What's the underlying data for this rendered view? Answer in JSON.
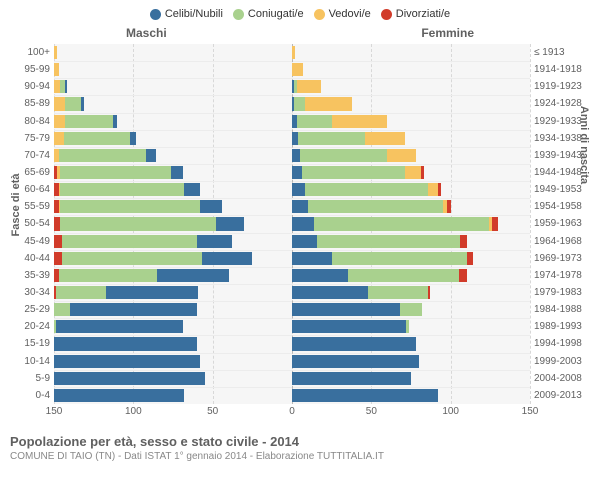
{
  "legend": [
    {
      "label": "Celibi/Nubili",
      "color": "#396f9e"
    },
    {
      "label": "Coniugati/e",
      "color": "#a9d18e"
    },
    {
      "label": "Vedovi/e",
      "color": "#f7c360"
    },
    {
      "label": "Divorziati/e",
      "color": "#d13b2a"
    }
  ],
  "half_labels": {
    "male": "Maschi",
    "female": "Femmine"
  },
  "y_left_title": "Fasce di età",
  "y_right_title": "Anni di nascita",
  "x_ticks": [
    150,
    100,
    50,
    0,
    50,
    100,
    150
  ],
  "x_max": 150,
  "footer_title": "Popolazione per età, sesso e stato civile - 2014",
  "footer_sub": "COMUNE DI TAIO (TN) - Dati ISTAT 1° gennaio 2014 - Elaborazione TUTTITALIA.IT",
  "style": {
    "plot_bg": "#f6f6f6",
    "grid_color": "#d8d8d8",
    "hline_color": "#ececec",
    "centerline_color": "#b8b8b8",
    "label_color": "#606060",
    "sub_color": "#888888",
    "label_fontsize": 10,
    "title_fontsize": 13
  },
  "rows": [
    {
      "age": "100+",
      "birth": "≤ 1913",
      "m": [
        0,
        0,
        2,
        0
      ],
      "f": [
        0,
        0,
        2,
        0
      ]
    },
    {
      "age": "95-99",
      "birth": "1914-1918",
      "m": [
        0,
        0,
        3,
        0
      ],
      "f": [
        0,
        0,
        7,
        0
      ]
    },
    {
      "age": "90-94",
      "birth": "1919-1923",
      "m": [
        1,
        3,
        4,
        0
      ],
      "f": [
        1,
        2,
        15,
        0
      ]
    },
    {
      "age": "85-89",
      "birth": "1924-1928",
      "m": [
        2,
        10,
        7,
        0
      ],
      "f": [
        1,
        7,
        30,
        0
      ]
    },
    {
      "age": "80-84",
      "birth": "1929-1933",
      "m": [
        3,
        30,
        7,
        0
      ],
      "f": [
        3,
        22,
        35,
        0
      ]
    },
    {
      "age": "75-79",
      "birth": "1934-1938",
      "m": [
        4,
        42,
        6,
        0
      ],
      "f": [
        4,
        42,
        25,
        0
      ]
    },
    {
      "age": "70-74",
      "birth": "1939-1943",
      "m": [
        6,
        55,
        3,
        0
      ],
      "f": [
        5,
        55,
        18,
        0
      ]
    },
    {
      "age": "65-69",
      "birth": "1944-1948",
      "m": [
        7,
        70,
        2,
        2
      ],
      "f": [
        6,
        65,
        10,
        2
      ]
    },
    {
      "age": "60-64",
      "birth": "1949-1953",
      "m": [
        10,
        78,
        1,
        3
      ],
      "f": [
        8,
        78,
        6,
        2
      ]
    },
    {
      "age": "55-59",
      "birth": "1954-1958",
      "m": [
        14,
        88,
        1,
        3
      ],
      "f": [
        10,
        85,
        3,
        2
      ]
    },
    {
      "age": "50-54",
      "birth": "1959-1963",
      "m": [
        18,
        98,
        0,
        4
      ],
      "f": [
        14,
        110,
        2,
        4
      ]
    },
    {
      "age": "45-49",
      "birth": "1964-1968",
      "m": [
        22,
        85,
        0,
        5
      ],
      "f": [
        16,
        90,
        0,
        4
      ]
    },
    {
      "age": "40-44",
      "birth": "1969-1973",
      "m": [
        32,
        88,
        0,
        5
      ],
      "f": [
        25,
        85,
        0,
        4
      ]
    },
    {
      "age": "35-39",
      "birth": "1974-1978",
      "m": [
        45,
        62,
        0,
        3
      ],
      "f": [
        35,
        70,
        0,
        5
      ]
    },
    {
      "age": "30-34",
      "birth": "1979-1983",
      "m": [
        58,
        32,
        0,
        1
      ],
      "f": [
        48,
        38,
        0,
        1
      ]
    },
    {
      "age": "25-29",
      "birth": "1984-1988",
      "m": [
        80,
        10,
        0,
        0
      ],
      "f": [
        68,
        14,
        0,
        0
      ]
    },
    {
      "age": "20-24",
      "birth": "1989-1993",
      "m": [
        80,
        1,
        0,
        0
      ],
      "f": [
        72,
        2,
        0,
        0
      ]
    },
    {
      "age": "15-19",
      "birth": "1994-1998",
      "m": [
        90,
        0,
        0,
        0
      ],
      "f": [
        78,
        0,
        0,
        0
      ]
    },
    {
      "age": "10-14",
      "birth": "1999-2003",
      "m": [
        92,
        0,
        0,
        0
      ],
      "f": [
        80,
        0,
        0,
        0
      ]
    },
    {
      "age": "5-9",
      "birth": "2004-2008",
      "m": [
        95,
        0,
        0,
        0
      ],
      "f": [
        75,
        0,
        0,
        0
      ]
    },
    {
      "age": "0-4",
      "birth": "2009-2013",
      "m": [
        82,
        0,
        0,
        0
      ],
      "f": [
        92,
        0,
        0,
        0
      ]
    }
  ]
}
